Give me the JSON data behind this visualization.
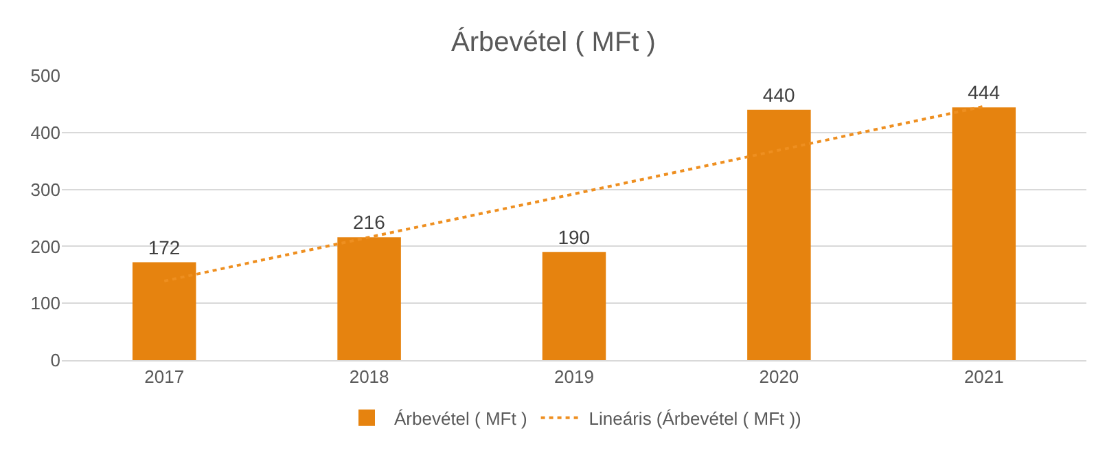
{
  "chart_data": {
    "type": "bar",
    "title": "Árbevétel ( MFt )",
    "categories": [
      "2017",
      "2018",
      "2019",
      "2020",
      "2021"
    ],
    "series": [
      {
        "name": "Árbevétel ( MFt )",
        "color": "#e6830f",
        "values": [
          172,
          216,
          190,
          440,
          444
        ],
        "value_labels": [
          "172",
          "216",
          "190",
          "440",
          "444"
        ]
      },
      {
        "name": "Lineáris (Árbevétel ( MFt ))",
        "type": "line",
        "line_style": "dotted",
        "color": "#ee8f20",
        "values": [
          139,
          216,
          292,
          369,
          446
        ]
      }
    ],
    "ylim": [
      0,
      500
    ],
    "yticks": [
      0,
      100,
      200,
      300,
      400,
      500
    ],
    "grid": "y",
    "legend": "bottom"
  }
}
